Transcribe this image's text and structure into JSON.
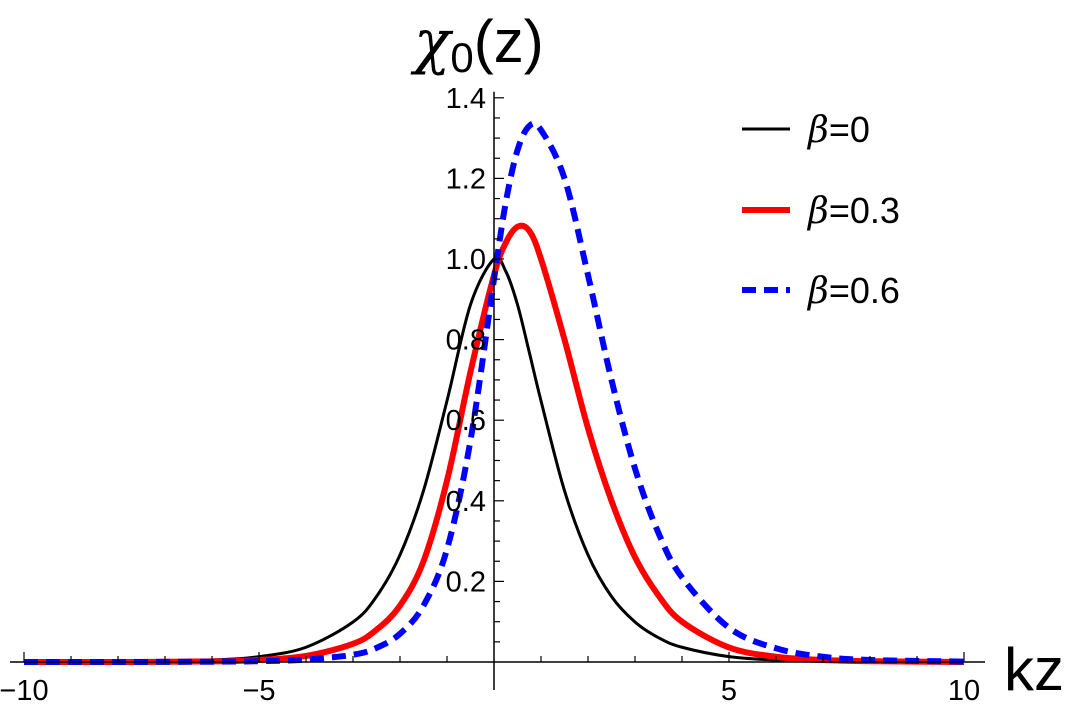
{
  "chart_data": {
    "type": "line",
    "title": "",
    "xlabel": "kz",
    "ylabel": "χ0(z)",
    "ylabel_parts": {
      "symbol": "χ",
      "subscript": "0",
      "arg": "(z)"
    },
    "xlim": [
      -10,
      10
    ],
    "ylim": [
      0,
      1.4
    ],
    "x_ticks": [
      -10,
      -5,
      5,
      10
    ],
    "x_tick_labels": [
      "−10",
      "−5",
      "5",
      "10"
    ],
    "y_ticks": [
      0.2,
      0.4,
      0.6,
      0.8,
      1.0,
      1.2,
      1.4
    ],
    "y_tick_labels": [
      "0.2",
      "0.4",
      "0.6",
      "0.8",
      "1.0",
      "1.2",
      "1.4"
    ],
    "legend_position": "top-right",
    "grid": false,
    "x": [
      -10,
      -8,
      -6,
      -5,
      -4,
      -3,
      -2.5,
      -2,
      -1.5,
      -1,
      -0.5,
      0,
      0.25,
      0.5,
      0.75,
      1,
      1.5,
      2,
      2.5,
      3,
      3.5,
      4,
      5,
      6,
      7,
      8,
      10
    ],
    "series": [
      {
        "name": "β=0",
        "legend_symbol": "β",
        "legend_value": "=0",
        "color": "#000000",
        "style": "solid",
        "values": [
          0.0001,
          0.0007,
          0.005,
          0.0133,
          0.0366,
          0.0993,
          0.1625,
          0.2658,
          0.4251,
          0.6481,
          0.8868,
          1.0,
          0.9696,
          0.8868,
          0.7689,
          0.6481,
          0.4251,
          0.2658,
          0.1625,
          0.0993,
          0.0603,
          0.0366,
          0.0133,
          0.005,
          0.0018,
          0.0007,
          0.0001
        ]
      },
      {
        "name": "β=0.3",
        "legend_symbol": "β",
        "legend_value": "=0.3",
        "color": "#ff0000",
        "style": "solid",
        "values": [
          0.0,
          0.0,
          0.0015,
          0.005,
          0.015,
          0.045,
          0.08,
          0.14,
          0.25,
          0.45,
          0.72,
          0.96,
          1.04,
          1.08,
          1.07,
          1.0,
          0.8,
          0.58,
          0.4,
          0.26,
          0.165,
          0.1,
          0.036,
          0.013,
          0.005,
          0.002,
          0.0
        ]
      },
      {
        "name": "β=0.6",
        "legend_symbol": "β",
        "legend_value": "=0.6",
        "color": "#0000ff",
        "style": "dashed",
        "values": [
          0.0,
          0.0,
          0.0007,
          0.002,
          0.006,
          0.018,
          0.035,
          0.07,
          0.14,
          0.28,
          0.55,
          0.95,
          1.14,
          1.27,
          1.33,
          1.32,
          1.2,
          0.96,
          0.7,
          0.48,
          0.32,
          0.21,
          0.085,
          0.034,
          0.013,
          0.005,
          0.001
        ]
      }
    ]
  }
}
